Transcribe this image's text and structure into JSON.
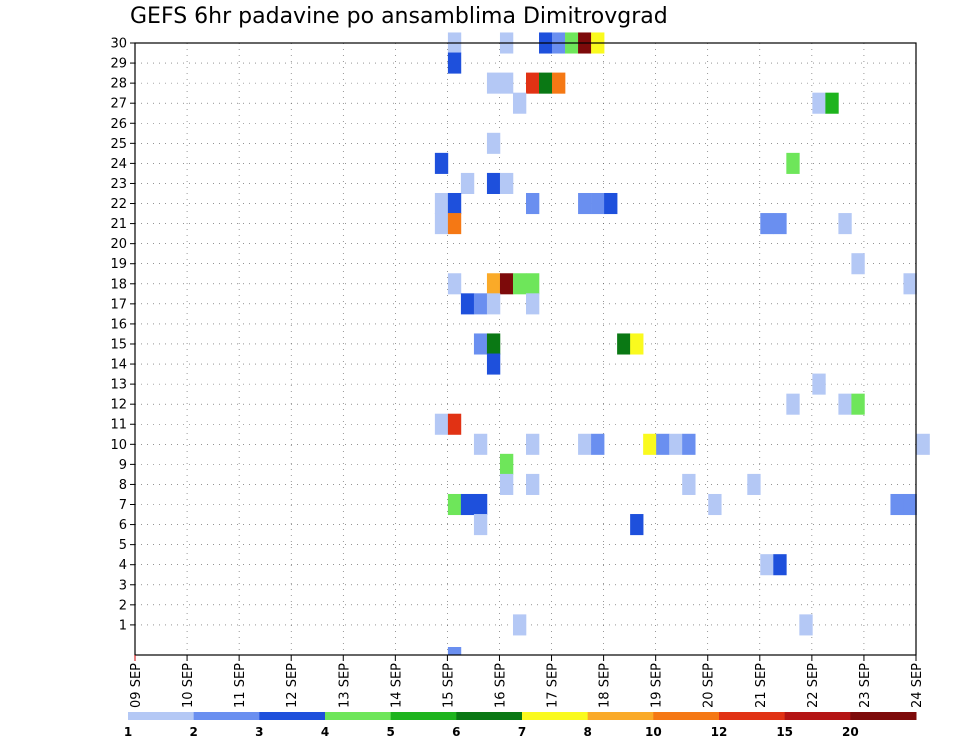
{
  "chart_data": {
    "type": "heatmap",
    "title": "GEFS 6hr padavine po ansamblima Dimitrovgrad",
    "x_tick_labels": [
      "09 SEP",
      "10 SEP",
      "11 SEP",
      "12 SEP",
      "13 SEP",
      "14 SEP",
      "15 SEP",
      "16 SEP",
      "17 SEP",
      "18 SEP",
      "19 SEP",
      "20 SEP",
      "21 SEP",
      "22 SEP",
      "23 SEP",
      "24 SEP"
    ],
    "y_tick_labels": [
      "1",
      "2",
      "3",
      "4",
      "5",
      "6",
      "7",
      "8",
      "9",
      "10",
      "11",
      "12",
      "13",
      "14",
      "15",
      "16",
      "17",
      "18",
      "19",
      "20",
      "21",
      "22",
      "23",
      "24",
      "25",
      "26",
      "27",
      "28",
      "29",
      "30"
    ],
    "x_range_days": [
      0,
      15
    ],
    "y_range": [
      0,
      30
    ],
    "grid": "dotted",
    "legend": {
      "position": "bottom",
      "thresholds": [
        "1",
        "2",
        "3",
        "4",
        "5",
        "6",
        "7",
        "8",
        "10",
        "12",
        "15",
        "20"
      ],
      "colors": [
        "#b4c8f5",
        "#6a8ff0",
        "#1e50dc",
        "#6ee65a",
        "#1eb41e",
        "#0a7814",
        "#fafa1e",
        "#faaa28",
        "#f57814",
        "#e13214",
        "#b41414",
        "#7d0a0a"
      ]
    },
    "cells": [
      {
        "member": 30,
        "day": 6.0,
        "class": 1
      },
      {
        "member": 30,
        "day": 7.0,
        "class": 1
      },
      {
        "member": 30,
        "day": 7.75,
        "class": 3
      },
      {
        "member": 30,
        "day": 8.0,
        "class": 2
      },
      {
        "member": 30,
        "day": 8.25,
        "class": 4
      },
      {
        "member": 30,
        "day": 8.5,
        "class": 12
      },
      {
        "member": 30,
        "day": 8.75,
        "class": 7
      },
      {
        "member": 29,
        "day": 6.0,
        "class": 3
      },
      {
        "member": 28,
        "day": 6.75,
        "class": 1
      },
      {
        "member": 28,
        "day": 7.0,
        "class": 1
      },
      {
        "member": 28,
        "day": 7.5,
        "class": 10
      },
      {
        "member": 28,
        "day": 7.75,
        "class": 6
      },
      {
        "member": 28,
        "day": 8.0,
        "class": 9
      },
      {
        "member": 27,
        "day": 7.25,
        "class": 1
      },
      {
        "member": 27,
        "day": 13.0,
        "class": 1
      },
      {
        "member": 27,
        "day": 13.25,
        "class": 5
      },
      {
        "member": 25,
        "day": 6.75,
        "class": 1
      },
      {
        "member": 24,
        "day": 5.75,
        "class": 3
      },
      {
        "member": 24,
        "day": 12.5,
        "class": 4
      },
      {
        "member": 23,
        "day": 6.25,
        "class": 1
      },
      {
        "member": 23,
        "day": 6.75,
        "class": 3
      },
      {
        "member": 23,
        "day": 7.0,
        "class": 1
      },
      {
        "member": 22,
        "day": 5.75,
        "class": 1
      },
      {
        "member": 22,
        "day": 6.0,
        "class": 3
      },
      {
        "member": 22,
        "day": 7.5,
        "class": 2
      },
      {
        "member": 22,
        "day": 8.5,
        "class": 2
      },
      {
        "member": 22,
        "day": 8.75,
        "class": 2
      },
      {
        "member": 22,
        "day": 9.0,
        "class": 3
      },
      {
        "member": 21,
        "day": 5.75,
        "class": 1
      },
      {
        "member": 21,
        "day": 6.0,
        "class": 9
      },
      {
        "member": 21,
        "day": 12.0,
        "class": 2
      },
      {
        "member": 21,
        "day": 12.25,
        "class": 2
      },
      {
        "member": 21,
        "day": 13.5,
        "class": 1
      },
      {
        "member": 19,
        "day": 13.75,
        "class": 1
      },
      {
        "member": 18,
        "day": 6.0,
        "class": 1
      },
      {
        "member": 18,
        "day": 6.75,
        "class": 8
      },
      {
        "member": 18,
        "day": 7.0,
        "class": 12
      },
      {
        "member": 18,
        "day": 7.25,
        "class": 4
      },
      {
        "member": 18,
        "day": 7.5,
        "class": 4
      },
      {
        "member": 18,
        "day": 14.75,
        "class": 1
      },
      {
        "member": 17,
        "day": 6.25,
        "class": 3
      },
      {
        "member": 17,
        "day": 6.5,
        "class": 2
      },
      {
        "member": 17,
        "day": 6.75,
        "class": 1
      },
      {
        "member": 17,
        "day": 7.5,
        "class": 1
      },
      {
        "member": 15,
        "day": 6.5,
        "class": 2
      },
      {
        "member": 15,
        "day": 6.75,
        "class": 6
      },
      {
        "member": 15,
        "day": 9.25,
        "class": 6
      },
      {
        "member": 15,
        "day": 9.5,
        "class": 7
      },
      {
        "member": 14,
        "day": 6.75,
        "class": 3
      },
      {
        "member": 13,
        "day": 13.0,
        "class": 1
      },
      {
        "member": 12,
        "day": 12.5,
        "class": 1
      },
      {
        "member": 12,
        "day": 13.5,
        "class": 1
      },
      {
        "member": 12,
        "day": 13.75,
        "class": 4
      },
      {
        "member": 11,
        "day": 5.75,
        "class": 1
      },
      {
        "member": 11,
        "day": 6.0,
        "class": 10
      },
      {
        "member": 10,
        "day": 6.5,
        "class": 1
      },
      {
        "member": 10,
        "day": 7.5,
        "class": 1
      },
      {
        "member": 10,
        "day": 8.5,
        "class": 1
      },
      {
        "member": 10,
        "day": 8.75,
        "class": 2
      },
      {
        "member": 10,
        "day": 9.75,
        "class": 7
      },
      {
        "member": 10,
        "day": 10.0,
        "class": 2
      },
      {
        "member": 10,
        "day": 10.25,
        "class": 1
      },
      {
        "member": 10,
        "day": 10.5,
        "class": 2
      },
      {
        "member": 10,
        "day": 15.0,
        "class": 1
      },
      {
        "member": 9,
        "day": 7.0,
        "class": 4
      },
      {
        "member": 8,
        "day": 7.0,
        "class": 1
      },
      {
        "member": 8,
        "day": 7.5,
        "class": 1
      },
      {
        "member": 8,
        "day": 10.5,
        "class": 1
      },
      {
        "member": 8,
        "day": 11.75,
        "class": 1
      },
      {
        "member": 7,
        "day": 6.0,
        "class": 4
      },
      {
        "member": 7,
        "day": 6.25,
        "class": 3
      },
      {
        "member": 7,
        "day": 6.5,
        "class": 3
      },
      {
        "member": 7,
        "day": 11.0,
        "class": 1
      },
      {
        "member": 7,
        "day": 14.5,
        "class": 2
      },
      {
        "member": 7,
        "day": 14.75,
        "class": 2
      },
      {
        "member": 6,
        "day": 6.5,
        "class": 1
      },
      {
        "member": 6,
        "day": 9.5,
        "class": 3
      },
      {
        "member": 4,
        "day": 12.0,
        "class": 1
      },
      {
        "member": 4,
        "day": 12.25,
        "class": 3
      },
      {
        "member": 1,
        "day": 7.25,
        "class": 1
      },
      {
        "member": 1,
        "day": 12.75,
        "class": 1
      }
    ],
    "extra_marks": [
      {
        "member": 0,
        "day": 6.0,
        "class": 2
      }
    ]
  }
}
